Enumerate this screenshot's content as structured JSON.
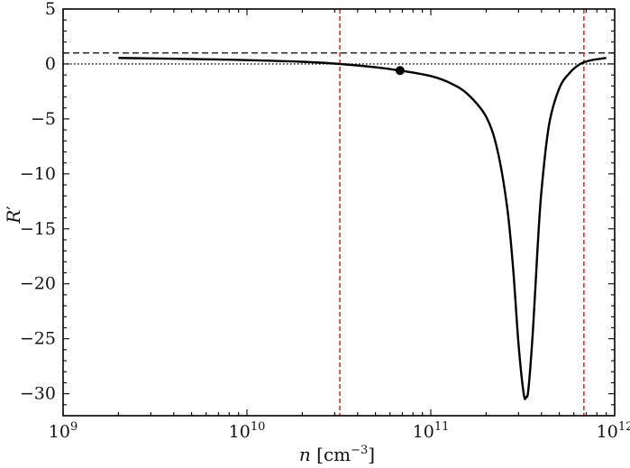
{
  "chart_data": {
    "type": "line",
    "title": "",
    "xlabel": {
      "var": "n",
      "unit_open": " [cm",
      "unit_sup": "−3",
      "unit_close": "]"
    },
    "ylabel": {
      "var": "R",
      "prime": "′"
    },
    "xscale": "log",
    "xlim": [
      1000000000,
      1000000000000
    ],
    "ylim": [
      -32,
      5
    ],
    "x_ticks": [
      {
        "value": 1000000000,
        "base": "10",
        "exp": "9"
      },
      {
        "value": 10000000000,
        "base": "10",
        "exp": "10"
      },
      {
        "value": 100000000000,
        "base": "10",
        "exp": "11"
      },
      {
        "value": 1000000000000,
        "base": "10",
        "exp": "12"
      }
    ],
    "y_ticks": [
      {
        "value": 5,
        "label": "5"
      },
      {
        "value": 0,
        "label": "0"
      },
      {
        "value": -5,
        "label": "−5"
      },
      {
        "value": -10,
        "label": "−10"
      },
      {
        "value": -15,
        "label": "−15"
      },
      {
        "value": -20,
        "label": "−20"
      },
      {
        "value": -25,
        "label": "−25"
      },
      {
        "value": -30,
        "label": "−30"
      }
    ],
    "grid": false,
    "series": [
      {
        "style": "solid",
        "color": "#000000",
        "x": [
          2000000000.0,
          5000000000.0,
          10000000000.0,
          20000000000.0,
          32000000000.0,
          50000000000.0,
          68000000000.0,
          100000000000.0,
          130000000000.0,
          160000000000.0,
          200000000000.0,
          230000000000.0,
          260000000000.0,
          280000000000.0,
          300000000000.0,
          320000000000.0,
          330000000000.0,
          340000000000.0,
          360000000000.0,
          380000000000.0,
          400000000000.0,
          440000000000.0,
          500000000000.0,
          570000000000.0,
          650000000000.0,
          750000000000.0,
          900000000000.0
        ],
        "y": [
          0.55,
          0.45,
          0.35,
          0.2,
          0.0,
          -0.3,
          -0.6,
          -1.1,
          -1.8,
          -2.8,
          -4.8,
          -7.8,
          -13.0,
          -18.5,
          -25.5,
          -30.0,
          -30.3,
          -29.5,
          -24.0,
          -17.0,
          -11.5,
          -5.5,
          -2.2,
          -0.8,
          0.0,
          0.35,
          0.55
        ]
      }
    ],
    "reference_lines": [
      {
        "orientation": "horizontal",
        "value": 1,
        "style": "dashed",
        "color": "#000000"
      },
      {
        "orientation": "horizontal",
        "value": 0,
        "style": "dotted",
        "color": "#000000"
      },
      {
        "orientation": "vertical",
        "value": 32000000000,
        "style": "dashed",
        "color": "#e8211d"
      },
      {
        "orientation": "vertical",
        "value": 680000000000,
        "style": "dashed",
        "color": "#e8211d"
      }
    ],
    "markers": [
      {
        "x": 68000000000,
        "y": -0.6,
        "color": "#000000"
      }
    ]
  }
}
